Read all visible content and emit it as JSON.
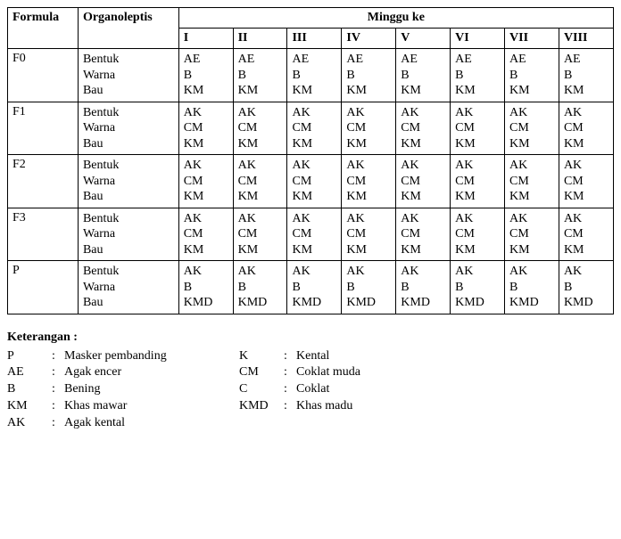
{
  "table": {
    "headers": {
      "formula": "Formula",
      "organoleptis": "Organoleptis",
      "minggu_ke": "Minggu ke",
      "weeks": [
        "I",
        "II",
        "III",
        "IV",
        "V",
        "VI",
        "VII",
        "VIII"
      ]
    },
    "organoleptis_labels": [
      "Bentuk",
      "Warna",
      "Bau"
    ],
    "rows": [
      {
        "formula": "F0",
        "cells": [
          [
            "AE",
            "B",
            "KM"
          ],
          [
            "AE",
            "B",
            "KM"
          ],
          [
            "AE",
            "B",
            "KM"
          ],
          [
            "AE",
            "B",
            "KM"
          ],
          [
            "AE",
            "B",
            "KM"
          ],
          [
            "AE",
            "B",
            "KM"
          ],
          [
            "AE",
            "B",
            "KM"
          ],
          [
            "AE",
            "B",
            "KM"
          ]
        ]
      },
      {
        "formula": "F1",
        "cells": [
          [
            "AK",
            "CM",
            "KM"
          ],
          [
            "AK",
            "CM",
            "KM"
          ],
          [
            "AK",
            "CM",
            "KM"
          ],
          [
            "AK",
            "CM",
            "KM"
          ],
          [
            "AK",
            "CM",
            "KM"
          ],
          [
            "AK",
            "CM",
            "KM"
          ],
          [
            "AK",
            "CM",
            "KM"
          ],
          [
            "AK",
            "CM",
            "KM"
          ]
        ]
      },
      {
        "formula": "F2",
        "cells": [
          [
            "AK",
            "CM",
            "KM"
          ],
          [
            "AK",
            "CM",
            "KM"
          ],
          [
            "AK",
            "CM",
            "KM"
          ],
          [
            "AK",
            "CM",
            "KM"
          ],
          [
            "AK",
            "CM",
            "KM"
          ],
          [
            "AK",
            "CM",
            "KM"
          ],
          [
            "AK",
            "CM",
            "KM"
          ],
          [
            "AK",
            "CM",
            "KM"
          ]
        ]
      },
      {
        "formula": "F3",
        "cells": [
          [
            "AK",
            "CM",
            "KM"
          ],
          [
            "AK",
            "CM",
            "KM"
          ],
          [
            "AK",
            "CM",
            "KM"
          ],
          [
            "AK",
            "CM",
            "KM"
          ],
          [
            "AK",
            "CM",
            "KM"
          ],
          [
            "AK",
            "CM",
            "KM"
          ],
          [
            "AK",
            "CM",
            "KM"
          ],
          [
            "AK",
            "CM",
            "KM"
          ]
        ]
      },
      {
        "formula": "P",
        "cells": [
          [
            "AK",
            "B",
            "KMD"
          ],
          [
            "AK",
            "B",
            "KMD"
          ],
          [
            "AK",
            "B",
            "KMD"
          ],
          [
            "AK",
            "B",
            "KMD"
          ],
          [
            "AK",
            "B",
            "KMD"
          ],
          [
            "AK",
            "B",
            "KMD"
          ],
          [
            "AK",
            "B",
            "KMD"
          ],
          [
            "AK",
            "B",
            "KMD"
          ]
        ]
      }
    ]
  },
  "keterangan": {
    "title": "Keterangan :",
    "separator": ":",
    "left": [
      {
        "abbr": "P",
        "desc": "Masker pembanding"
      },
      {
        "abbr": "AE",
        "desc": "Agak encer"
      },
      {
        "abbr": "B",
        "desc": "Bening"
      },
      {
        "abbr": "KM",
        "desc": "Khas mawar"
      },
      {
        "abbr": "AK",
        "desc": "Agak kental"
      }
    ],
    "right": [
      {
        "abbr": "K",
        "desc": "Kental"
      },
      {
        "abbr": "CM",
        "desc": "Coklat muda"
      },
      {
        "abbr": "C",
        "desc": "Coklat"
      },
      {
        "abbr": "KMD",
        "desc": "Khas madu"
      }
    ]
  }
}
